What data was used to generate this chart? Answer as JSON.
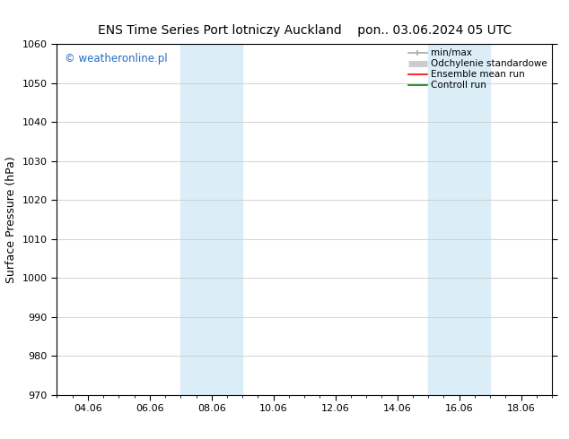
{
  "title_left": "ENS Time Series Port lotniczy Auckland",
  "title_right": "pon.. 03.06.2024 05 UTC",
  "ylabel": "Surface Pressure (hPa)",
  "xtick_labels": [
    "04.06",
    "06.06",
    "08.06",
    "10.06",
    "12.06",
    "14.06",
    "16.06",
    "18.06"
  ],
  "xtick_positions": [
    2,
    4,
    6,
    8,
    10,
    12,
    14,
    16
  ],
  "xlim": [
    1,
    17
  ],
  "ylim": [
    970,
    1060
  ],
  "yticks": [
    970,
    980,
    990,
    1000,
    1010,
    1020,
    1030,
    1040,
    1050,
    1060
  ],
  "shaded_bands": [
    {
      "x_start": 5,
      "x_end": 7
    },
    {
      "x_start": 13,
      "x_end": 15
    }
  ],
  "shade_color": "#dbeef8",
  "background_color": "#ffffff",
  "watermark_text": "© weatheronline.pl",
  "watermark_color": "#1e6ec8",
  "legend_entries": [
    {
      "label": "min/max",
      "color": "#aaaaaa",
      "lw": 1.2,
      "style": "line_with_caps"
    },
    {
      "label": "Odchylenie standardowe",
      "color": "#cccccc",
      "lw": 5,
      "style": "thick"
    },
    {
      "label": "Ensemble mean run",
      "color": "#ff0000",
      "lw": 1.2,
      "style": "line"
    },
    {
      "label": "Controll run",
      "color": "#008000",
      "lw": 1.2,
      "style": "line"
    }
  ],
  "grid_color": "#cccccc",
  "title_fontsize": 10,
  "axis_label_fontsize": 9,
  "tick_fontsize": 8,
  "legend_fontsize": 7.5,
  "watermark_fontsize": 8.5
}
